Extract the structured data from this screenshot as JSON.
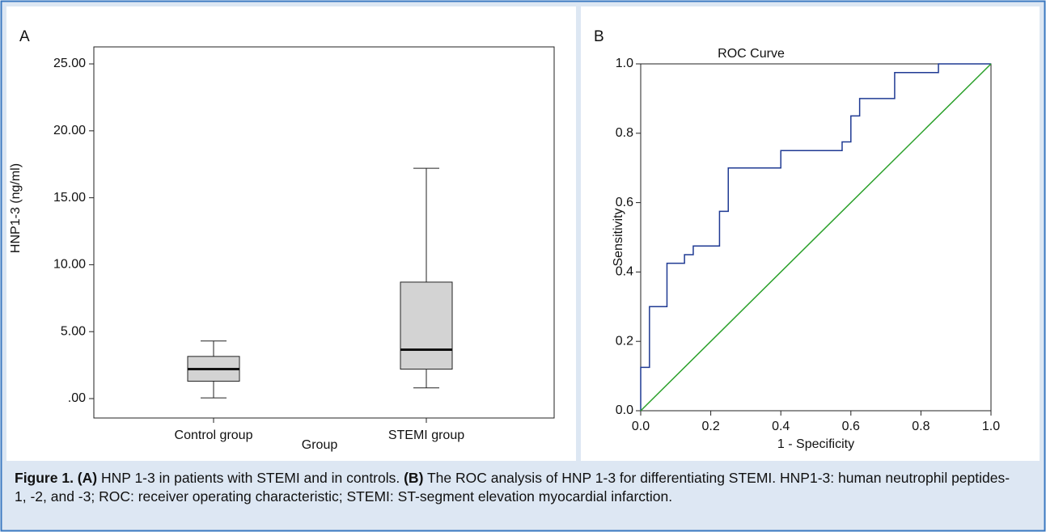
{
  "chart_data": [
    {
      "type": "box",
      "panel_label": "A",
      "y_label": "HNP1-3 (ng/ml)",
      "x_label": "Group",
      "categories": [
        "Control group",
        "STEMI group"
      ],
      "boxes": [
        {
          "min": 0.05,
          "q1": 1.3,
          "median": 2.2,
          "q3": 3.15,
          "max": 4.3
        },
        {
          "min": 0.8,
          "q1": 2.2,
          "median": 3.65,
          "q3": 8.7,
          "max": 17.2
        }
      ],
      "color": "#d3d3d3",
      "ylim": [
        -1.45,
        26.27
      ],
      "yticks": [
        {
          "value": 0,
          "label": ".00"
        },
        {
          "value": 5,
          "label": "5.00"
        },
        {
          "value": 10,
          "label": "10.00"
        },
        {
          "value": 15,
          "label": "15.00"
        },
        {
          "value": 20,
          "label": "20.00"
        },
        {
          "value": 25,
          "label": "25.00"
        }
      ]
    },
    {
      "type": "line",
      "panel_label": "B",
      "title": "ROC Curve",
      "x_label": "1 - Specificity",
      "y_label": "Sensitivity",
      "series": [
        {
          "color": "#1f3a93",
          "x": [
            0,
            0,
            0.025,
            0.025,
            0.075,
            0.075,
            0.125,
            0.125,
            0.15,
            0.15,
            0.225,
            0.225,
            0.25,
            0.25,
            0.4,
            0.4,
            0.575,
            0.575,
            0.6,
            0.6,
            0.625,
            0.625,
            0.725,
            0.725,
            0.85,
            0.85,
            1
          ],
          "values": [
            0,
            0.125,
            0.125,
            0.3,
            0.3,
            0.425,
            0.425,
            0.45,
            0.45,
            0.475,
            0.475,
            0.575,
            0.575,
            0.7,
            0.7,
            0.75,
            0.75,
            0.775,
            0.775,
            0.85,
            0.85,
            0.9,
            0.9,
            0.975,
            0.975,
            1,
            1
          ]
        },
        {
          "color": "#2aa02a",
          "x": [
            0,
            1
          ],
          "values": [
            0,
            1
          ]
        }
      ],
      "xlim": [
        0,
        1
      ],
      "ylim": [
        0,
        1
      ],
      "xticks": [
        {
          "value": 0,
          "label": "0.0"
        },
        0.2,
        0.4,
        0.6,
        0.8,
        {
          "value": 1,
          "label": "1.0"
        }
      ],
      "yticks": [
        {
          "value": 0,
          "label": "0.0"
        },
        0.2,
        0.4,
        0.6,
        0.8,
        {
          "value": 1,
          "label": "1.0"
        }
      ]
    }
  ],
  "caption": [
    {
      "text": "Figure 1. (A)",
      "bold": true
    },
    {
      "text": " HNP 1-3 in patients with STEMI and in controls. ",
      "bold": false
    },
    {
      "text": "(B)",
      "bold": true
    },
    {
      "text": " The ROC analysis of HNP 1-3 for differentiating STEMI. HNP1-3: human neutrophil peptides-1, -2, and -3; ROC: receiver operating characteristic; STEMI: ST-segment elevation myocardial infarction.",
      "bold": false
    }
  ]
}
